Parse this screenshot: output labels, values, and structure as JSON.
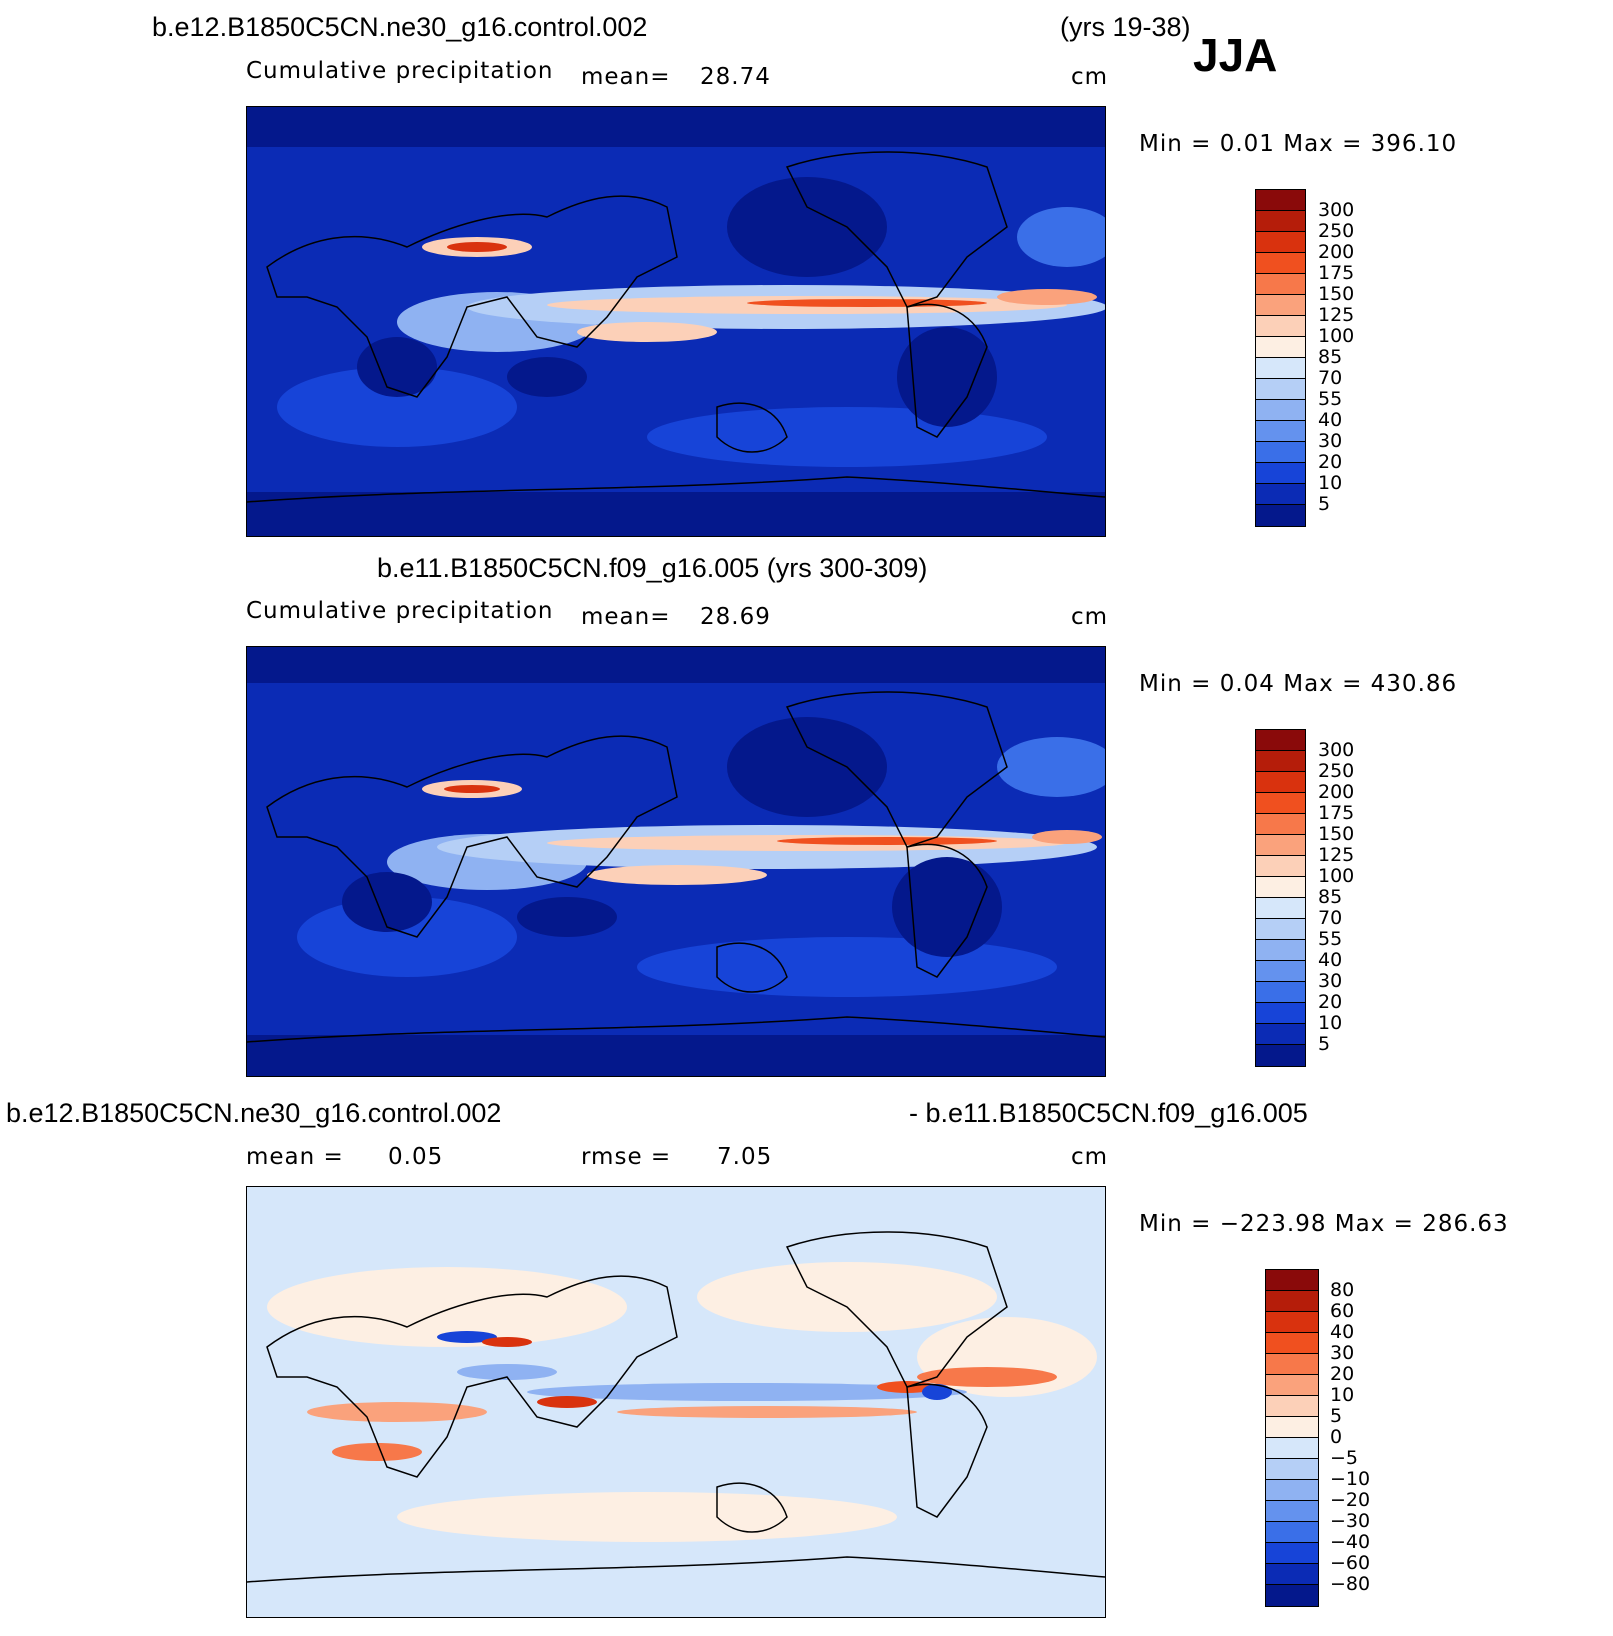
{
  "header": {
    "case1": "b.e12.B1850C5CN.ne30_g16.control.002",
    "case1_years": "(yrs 19-38)",
    "season": "JJA"
  },
  "panel1": {
    "field_label": "Cumulative precipitation",
    "mean_label": "mean=",
    "mean_value": "28.74",
    "units": "cm",
    "min_max": "Min =     0.01  Max  =  396.10",
    "colorbar": {
      "labels": [
        "300",
        "250",
        "200",
        "175",
        "150",
        "125",
        "100",
        "85",
        "70",
        "55",
        "40",
        "30",
        "20",
        "10",
        "5"
      ],
      "colors": [
        "#8a0a0a",
        "#b51d0a",
        "#d9320e",
        "#f0501f",
        "#f7784a",
        "#faa27c",
        "#fcd0b8",
        "#fdefe3",
        "#d6e7fa",
        "#b5cff6",
        "#8fb2f2",
        "#6492ee",
        "#3a6fe8",
        "#1744d8",
        "#0b2bb5",
        "#04188c"
      ]
    }
  },
  "panel2": {
    "title": "b.e11.B1850C5CN.f09_g16.005 (yrs 300-309)",
    "field_label": "Cumulative precipitation",
    "mean_label": "mean=",
    "mean_value": "28.69",
    "units": "cm",
    "min_max": "Min =     0.04  Max  =  430.86",
    "colorbar": {
      "labels": [
        "300",
        "250",
        "200",
        "175",
        "150",
        "125",
        "100",
        "85",
        "70",
        "55",
        "40",
        "30",
        "20",
        "10",
        "5"
      ]
    }
  },
  "panel3": {
    "title_left": "b.e12.B1850C5CN.ne30_g16.control.002",
    "title_right": "- b.e11.B1850C5CN.f09_g16.005",
    "mean_label": "mean =",
    "mean_value": "0.05",
    "rmse_label": "rmse =",
    "rmse_value": "7.05",
    "units": "cm",
    "min_max": "Min = −223.98  Max  =  286.63",
    "colorbar": {
      "labels": [
        "80",
        "60",
        "40",
        "30",
        "20",
        "10",
        "5",
        "0",
        "−5",
        "−10",
        "−20",
        "−30",
        "−40",
        "−60",
        "−80"
      ],
      "colors": [
        "#8a0a0a",
        "#b51d0a",
        "#d9320e",
        "#f0501f",
        "#f7784a",
        "#faa27c",
        "#fcd0b8",
        "#fdefe3",
        "#d6e7fa",
        "#b5cff6",
        "#8fb2f2",
        "#6492ee",
        "#3a6fe8",
        "#1744d8",
        "#0b2bb5",
        "#04188c"
      ]
    }
  }
}
